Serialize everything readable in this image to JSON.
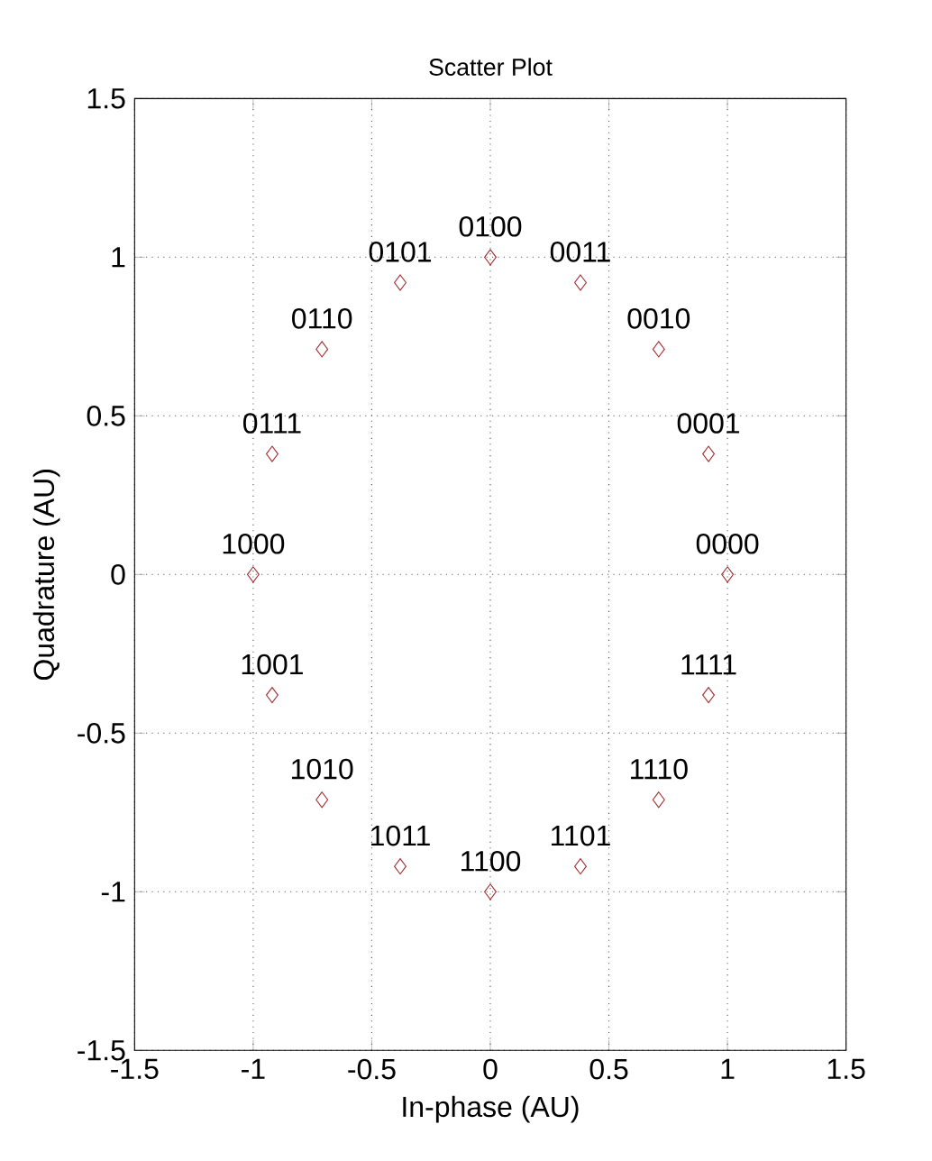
{
  "chart_data": {
    "type": "scatter",
    "title": "Scatter Plot",
    "xlabel": "In-phase (AU)",
    "ylabel": "Quadrature (AU)",
    "x": [
      1,
      0.92,
      0.71,
      0.38,
      0,
      -0.38,
      -0.71,
      -0.92,
      -1,
      -0.92,
      -0.71,
      -0.38,
      0,
      0.38,
      0.71,
      0.92
    ],
    "values": [
      0,
      0.38,
      0.71,
      0.92,
      1,
      0.92,
      0.71,
      0.38,
      0,
      -0.38,
      -0.71,
      -0.92,
      -1,
      -0.92,
      -0.71,
      -0.38
    ],
    "color": "#a0282d",
    "marker": "diamond",
    "grid": true,
    "xlim": [
      -1.5,
      1.5
    ],
    "ylim": [
      -1.5,
      1.5
    ],
    "xticks": [
      -1.5,
      -1,
      -0.5,
      0,
      0.5,
      1,
      1.5
    ],
    "yticks": [
      -1.5,
      -1,
      -0.5,
      0,
      0.5,
      1,
      1.5
    ],
    "annotations": [
      {
        "text": "0000",
        "x": 1,
        "y": 0
      },
      {
        "text": "0001",
        "x": 0.92,
        "y": 0.38
      },
      {
        "text": "0010",
        "x": 0.71,
        "y": 0.71
      },
      {
        "text": "0011",
        "x": 0.38,
        "y": 0.92
      },
      {
        "text": "0100",
        "x": 0,
        "y": 1
      },
      {
        "text": "0101",
        "x": -0.38,
        "y": 0.92
      },
      {
        "text": "0110",
        "x": -0.71,
        "y": 0.71
      },
      {
        "text": "0111",
        "x": -0.92,
        "y": 0.38
      },
      {
        "text": "1000",
        "x": -1,
        "y": 0
      },
      {
        "text": "1001",
        "x": -0.92,
        "y": -0.38
      },
      {
        "text": "1010",
        "x": -0.71,
        "y": -0.71
      },
      {
        "text": "1011",
        "x": -0.38,
        "y": -0.92
      },
      {
        "text": "1100",
        "x": 0,
        "y": -1
      },
      {
        "text": "1101",
        "x": 0.38,
        "y": -0.92
      },
      {
        "text": "1110",
        "x": 0.71,
        "y": -0.71
      },
      {
        "text": "1111",
        "x": 0.92,
        "y": -0.38
      }
    ]
  }
}
